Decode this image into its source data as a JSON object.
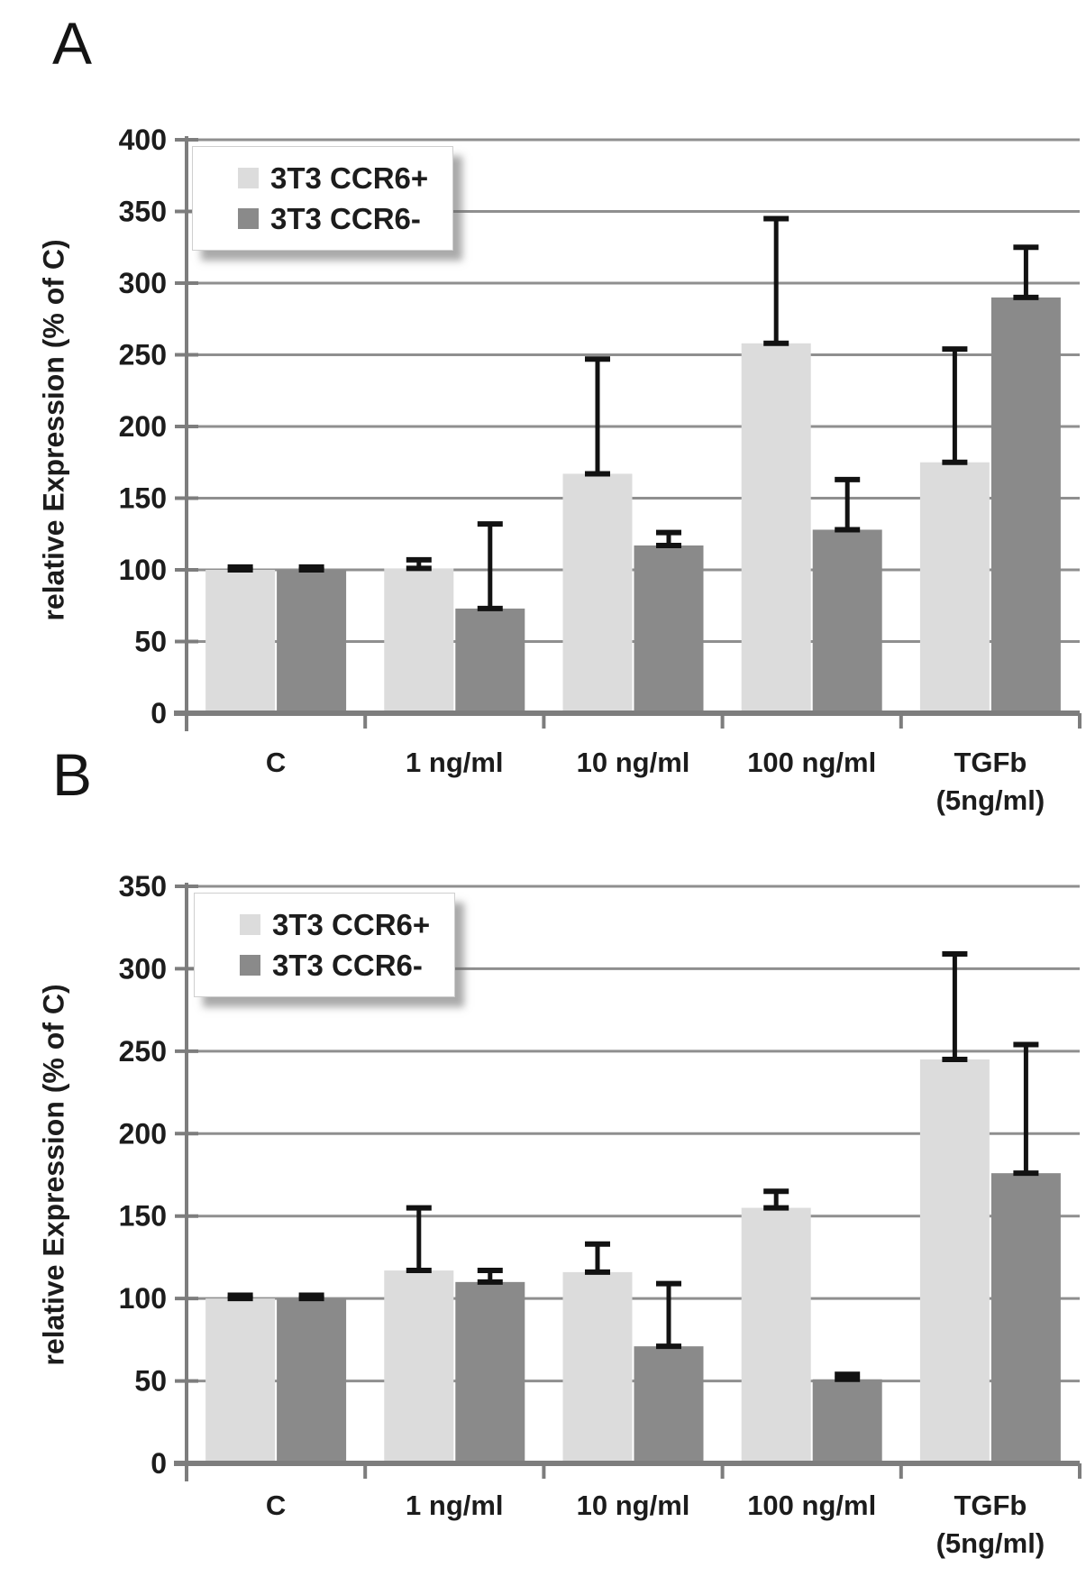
{
  "figure_type": "two-panel grouped bar chart with error bars",
  "style": {
    "background": "#ffffff",
    "grid_color": "#8f8f8f",
    "axis_color": "#7d7d7d",
    "error_bar_color": "#121212",
    "text_color": "#1c1c1c",
    "legend_border": "#cfcfcf"
  },
  "chart_data": [
    {
      "type": "bar",
      "panel_label": "A",
      "title": "",
      "xlabel": "",
      "ylabel": "relative Expression (% of C)",
      "ylim": [
        0,
        400
      ],
      "ytick_step": 50,
      "ytick_labels": [
        "0",
        "50",
        "100",
        "150",
        "200",
        "250",
        "300",
        "350",
        "400"
      ],
      "grid": true,
      "legend_position": "top-left",
      "categories": [
        [
          "C"
        ],
        [
          "1 ng/ml"
        ],
        [
          "10 ng/ml"
        ],
        [
          "100 ng/ml"
        ],
        [
          "TGFb",
          "(5ng/ml)"
        ]
      ],
      "series": [
        {
          "name": "3T3 CCR6+",
          "color": "#dcdcdc",
          "values": [
            100,
            101,
            167,
            258,
            175
          ],
          "errors_plus": [
            2,
            6,
            80,
            87,
            79
          ]
        },
        {
          "name": "3T3 CCR6-",
          "color": "#8a8a8a",
          "values": [
            100,
            73,
            117,
            128,
            290
          ],
          "errors_plus": [
            2,
            59,
            9,
            35,
            35
          ]
        }
      ]
    },
    {
      "type": "bar",
      "panel_label": "B",
      "title": "",
      "xlabel": "",
      "ylabel": "relative Expression (% of C)",
      "ylim": [
        0,
        350
      ],
      "ytick_step": 50,
      "ytick_labels": [
        "0",
        "50",
        "100",
        "150",
        "200",
        "250",
        "300",
        "350"
      ],
      "grid": true,
      "legend_position": "top-left",
      "categories": [
        [
          "C"
        ],
        [
          "1 ng/ml"
        ],
        [
          "10 ng/ml"
        ],
        [
          "100 ng/ml"
        ],
        [
          "TGFb",
          "(5ng/ml)"
        ]
      ],
      "series": [
        {
          "name": "3T3 CCR6+",
          "color": "#dcdcdc",
          "values": [
            100,
            117,
            116,
            155,
            245
          ],
          "errors_plus": [
            2,
            38,
            17,
            10,
            64
          ]
        },
        {
          "name": "3T3 CCR6-",
          "color": "#8a8a8a",
          "values": [
            100,
            110,
            71,
            51,
            176
          ],
          "errors_plus": [
            2,
            7,
            38,
            3,
            78
          ]
        }
      ]
    }
  ]
}
